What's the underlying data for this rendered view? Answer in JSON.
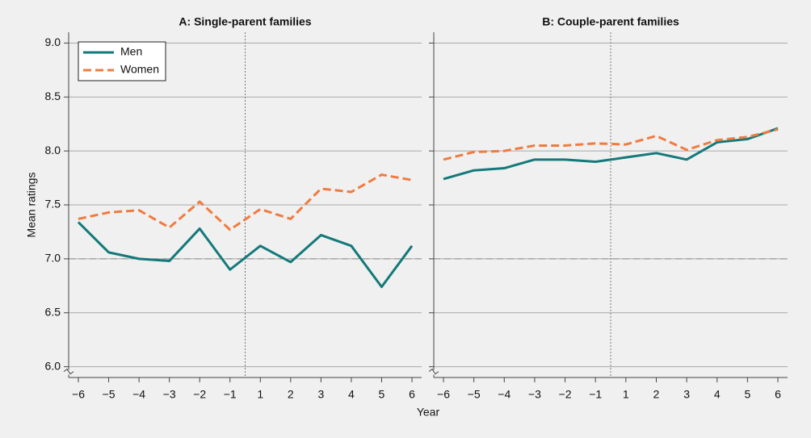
{
  "ylabel": "Mean ratings",
  "xlabel": "Year",
  "chart_data": [
    {
      "type": "line",
      "title": "A: Single-parent families",
      "categories": [
        "−6",
        "−5",
        "−4",
        "−3",
        "−2",
        "−1",
        "1",
        "2",
        "3",
        "4",
        "5",
        "6"
      ],
      "series": [
        {
          "name": "Men",
          "color": "#14797a",
          "dash": "solid",
          "values": [
            7.34,
            7.06,
            7.0,
            6.98,
            7.28,
            6.9,
            7.12,
            6.97,
            7.22,
            7.12,
            6.74,
            7.12
          ]
        },
        {
          "name": "Women",
          "color": "#f07b3f",
          "dash": "dashed",
          "values": [
            7.37,
            7.43,
            7.45,
            7.29,
            7.53,
            7.27,
            7.46,
            7.37,
            7.65,
            7.62,
            7.78,
            7.73
          ]
        }
      ],
      "ylim": [
        5.9,
        9.1
      ],
      "yticks": [
        {
          "value": 6,
          "label": "6.0"
        },
        6.5,
        {
          "value": 7,
          "label": "7.0"
        },
        7.5,
        {
          "value": 8,
          "label": "8.0"
        },
        8.5,
        {
          "value": 9,
          "label": "9.0"
        }
      ],
      "reference_line": 7,
      "grid": true,
      "legend": "upper left"
    },
    {
      "type": "line",
      "title": "B: Couple-parent families",
      "categories": [
        "−6",
        "−5",
        "−4",
        "−3",
        "−2",
        "−1",
        "1",
        "2",
        "3",
        "4",
        "5",
        "6"
      ],
      "series": [
        {
          "color": "#14797a",
          "dash": "solid",
          "values": [
            7.74,
            7.82,
            7.84,
            7.92,
            7.92,
            7.9,
            7.94,
            7.98,
            7.92,
            8.08,
            8.11,
            8.21
          ]
        },
        {
          "color": "#f07b3f",
          "dash": "dashed",
          "values": [
            7.92,
            7.99,
            8.0,
            8.05,
            8.05,
            8.07,
            8.06,
            8.14,
            8.01,
            8.1,
            8.13,
            8.2
          ]
        }
      ],
      "ylim": [
        5.9,
        9.1
      ],
      "yticks": [
        6,
        6.5,
        7,
        7.5,
        8,
        8.5,
        9
      ],
      "reference_line": 7,
      "grid": true
    }
  ]
}
